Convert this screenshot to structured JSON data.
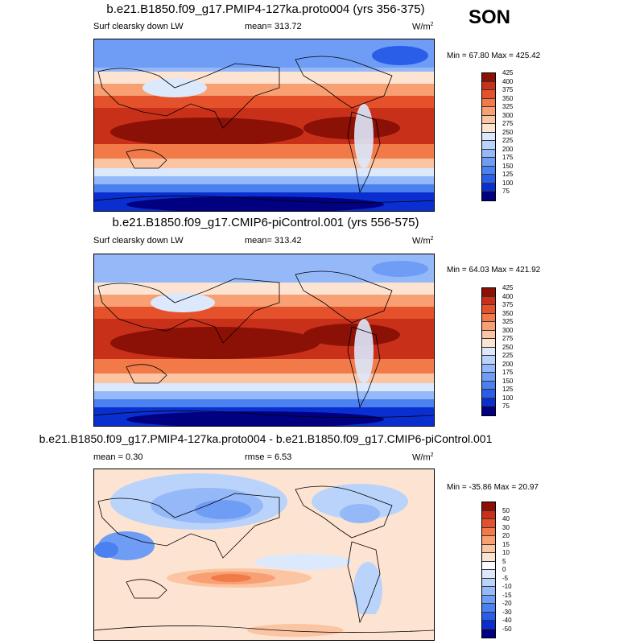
{
  "season": "SON",
  "colors": {
    "abs_scale": [
      "#000080",
      "#0a2fd0",
      "#2a5ee8",
      "#4a80f0",
      "#6f9df5",
      "#95b9f8",
      "#bad3fb",
      "#dce8fc",
      "#fde4d2",
      "#fbc5a3",
      "#f8a074",
      "#f27a49",
      "#e5512a",
      "#c8301a",
      "#8b1006"
    ],
    "diff_scale": [
      "#000080",
      "#0a2fd0",
      "#2a5ee8",
      "#4a80f0",
      "#6f9df5",
      "#95b9f8",
      "#bad3fb",
      "#dce8fc",
      "#ffffff",
      "#fde4d2",
      "#fbc5a3",
      "#f8a074",
      "#f27a49",
      "#e5512a",
      "#c8301a",
      "#8b1006"
    ]
  },
  "panels": [
    {
      "title": "b.e21.B1850.f09_g17.PMIP4-127ka.proto004 (yrs 356-375)",
      "left_label": "Surf clearsky down LW",
      "center_label": "mean= 313.72",
      "units": "W/m",
      "units_sup": "2",
      "minmax": "Min =  67.80 Max = 425.42",
      "levels": [
        "75",
        "100",
        "125",
        "150",
        "175",
        "200",
        "225",
        "250",
        "275",
        "300",
        "325",
        "350",
        "375",
        "400",
        "425"
      ],
      "kind": "abs"
    },
    {
      "title": "b.e21.B1850.f09_g17.CMIP6-piControl.001 (yrs 556-575)",
      "left_label": "Surf clearsky down LW",
      "center_label": "mean= 313.42",
      "units": "W/m",
      "units_sup": "2",
      "minmax": "Min =  64.03 Max = 421.92",
      "levels": [
        "75",
        "100",
        "125",
        "150",
        "175",
        "200",
        "225",
        "250",
        "275",
        "300",
        "325",
        "350",
        "375",
        "400",
        "425"
      ],
      "kind": "abs"
    },
    {
      "title": "b.e21.B1850.f09_g17.PMIP4-127ka.proto004 - b.e21.B1850.f09_g17.CMIP6-piControl.001",
      "left_label": "mean =   0.30",
      "center_label": "rmse =   6.53",
      "units": "W/m",
      "units_sup": "2",
      "minmax": "Min = -35.86 Max =  20.97",
      "levels": [
        "-50",
        "-40",
        "-30",
        "-20",
        "-15",
        "-10",
        "-5",
        "0",
        "5",
        "10",
        "15",
        "20",
        "30",
        "40",
        "50"
      ],
      "kind": "diff"
    }
  ]
}
